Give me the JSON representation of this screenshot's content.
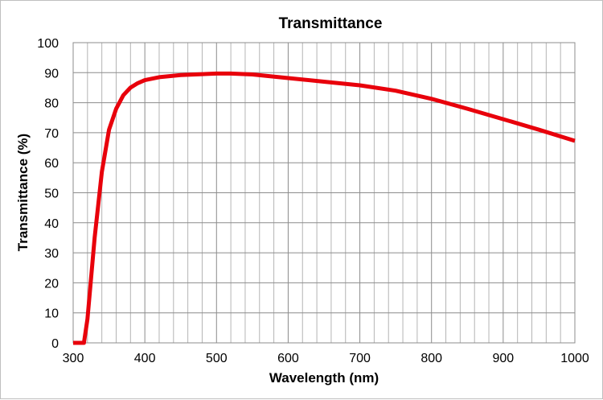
{
  "chart_data": {
    "type": "line",
    "title": "Transmittance",
    "xlabel": "Wavelength (nm)",
    "ylabel": "Transmittance (%)",
    "xlim": [
      300,
      1000
    ],
    "ylim": [
      0,
      100
    ],
    "xticks": [
      300,
      400,
      500,
      600,
      700,
      800,
      900,
      1000
    ],
    "yticks": [
      0,
      10,
      20,
      30,
      40,
      50,
      60,
      70,
      80,
      90,
      100
    ],
    "x_minor_step": 20,
    "grid": true,
    "legend": "none",
    "series": [
      {
        "color": "#e8000b",
        "x": [
          300,
          315,
          320,
          330,
          340,
          350,
          360,
          370,
          380,
          390,
          400,
          420,
          450,
          500,
          520,
          550,
          600,
          650,
          700,
          750,
          800,
          850,
          900,
          950,
          1000
        ],
        "y": [
          0,
          0,
          8,
          35,
          57,
          71,
          78,
          82.5,
          85,
          86.5,
          87.5,
          88.5,
          89.2,
          89.7,
          89.7,
          89.4,
          88.2,
          87,
          85.8,
          84,
          81.3,
          78,
          74.5,
          71,
          67.3
        ]
      }
    ]
  }
}
